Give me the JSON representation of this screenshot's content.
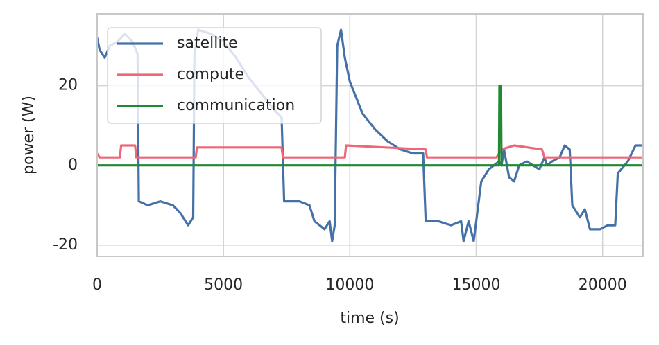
{
  "chart_data": {
    "type": "line",
    "xlabel": "time (s)",
    "ylabel": "power (W)",
    "xlim": [
      0,
      21600
    ],
    "xticks": [
      0,
      5000,
      10000,
      15000,
      20000
    ],
    "ylim": [
      -22.8,
      38
    ],
    "yticks": [
      -20,
      0,
      20
    ],
    "grid": true,
    "legend": "upper left",
    "series": [
      {
        "name": "satellite",
        "color": "#4471a7",
        "x": [
          0,
          100,
          300,
          500,
          800,
          1100,
          1400,
          1600,
          1650,
          2000,
          2500,
          3000,
          3300,
          3600,
          3800,
          3850,
          4000,
          4500,
          5000,
          5500,
          6000,
          6500,
          7000,
          7300,
          7400,
          8000,
          8400,
          8600,
          9000,
          9200,
          9300,
          9400,
          9500,
          9650,
          9800,
          10000,
          10500,
          11000,
          11500,
          12000,
          12500,
          12900,
          13000,
          13500,
          14000,
          14400,
          14500,
          14700,
          14900,
          15200,
          15500,
          15900,
          16000,
          16100,
          16300,
          16500,
          16700,
          17000,
          17500,
          17700,
          17800,
          18000,
          18300,
          18500,
          18700,
          18800,
          19100,
          19300,
          19500,
          19900,
          20200,
          20500,
          20600,
          21000,
          21300,
          21600
        ],
        "values": [
          32,
          29,
          27,
          30,
          31,
          33,
          31,
          28,
          -9,
          -10,
          -9,
          -10,
          -12,
          -15,
          -13,
          28,
          34,
          33,
          31,
          27,
          22,
          18,
          14,
          12,
          -9,
          -9,
          -10,
          -14,
          -16,
          -14,
          -19,
          -15,
          30,
          34,
          27,
          21,
          13,
          9,
          6,
          4,
          3,
          3,
          -14,
          -14,
          -15,
          -14,
          -19,
          -14,
          -19,
          -4,
          -1,
          1,
          0,
          4,
          -3,
          -4,
          0,
          1,
          -1,
          2,
          0,
          1,
          2,
          5,
          4,
          -10,
          -13,
          -11,
          -16,
          -16,
          -15,
          -15,
          -2,
          1,
          5,
          5
        ]
      },
      {
        "name": "compute",
        "color": "#ee6677",
        "x": [
          0,
          100,
          900,
          950,
          1500,
          1550,
          3900,
          3950,
          7300,
          7350,
          9800,
          9850,
          13000,
          13050,
          15800,
          16000,
          16500,
          17600,
          17700,
          21600
        ],
        "values": [
          3,
          2,
          2,
          5,
          5,
          2,
          2,
          4.5,
          4.5,
          2,
          2,
          5,
          4,
          2,
          2,
          4,
          5,
          4,
          2,
          2
        ]
      },
      {
        "name": "communication",
        "color": "#228833",
        "x": [
          0,
          15900,
          15920,
          15980,
          16000,
          21600
        ],
        "values": [
          0,
          0,
          20,
          20,
          0,
          0
        ]
      }
    ]
  }
}
